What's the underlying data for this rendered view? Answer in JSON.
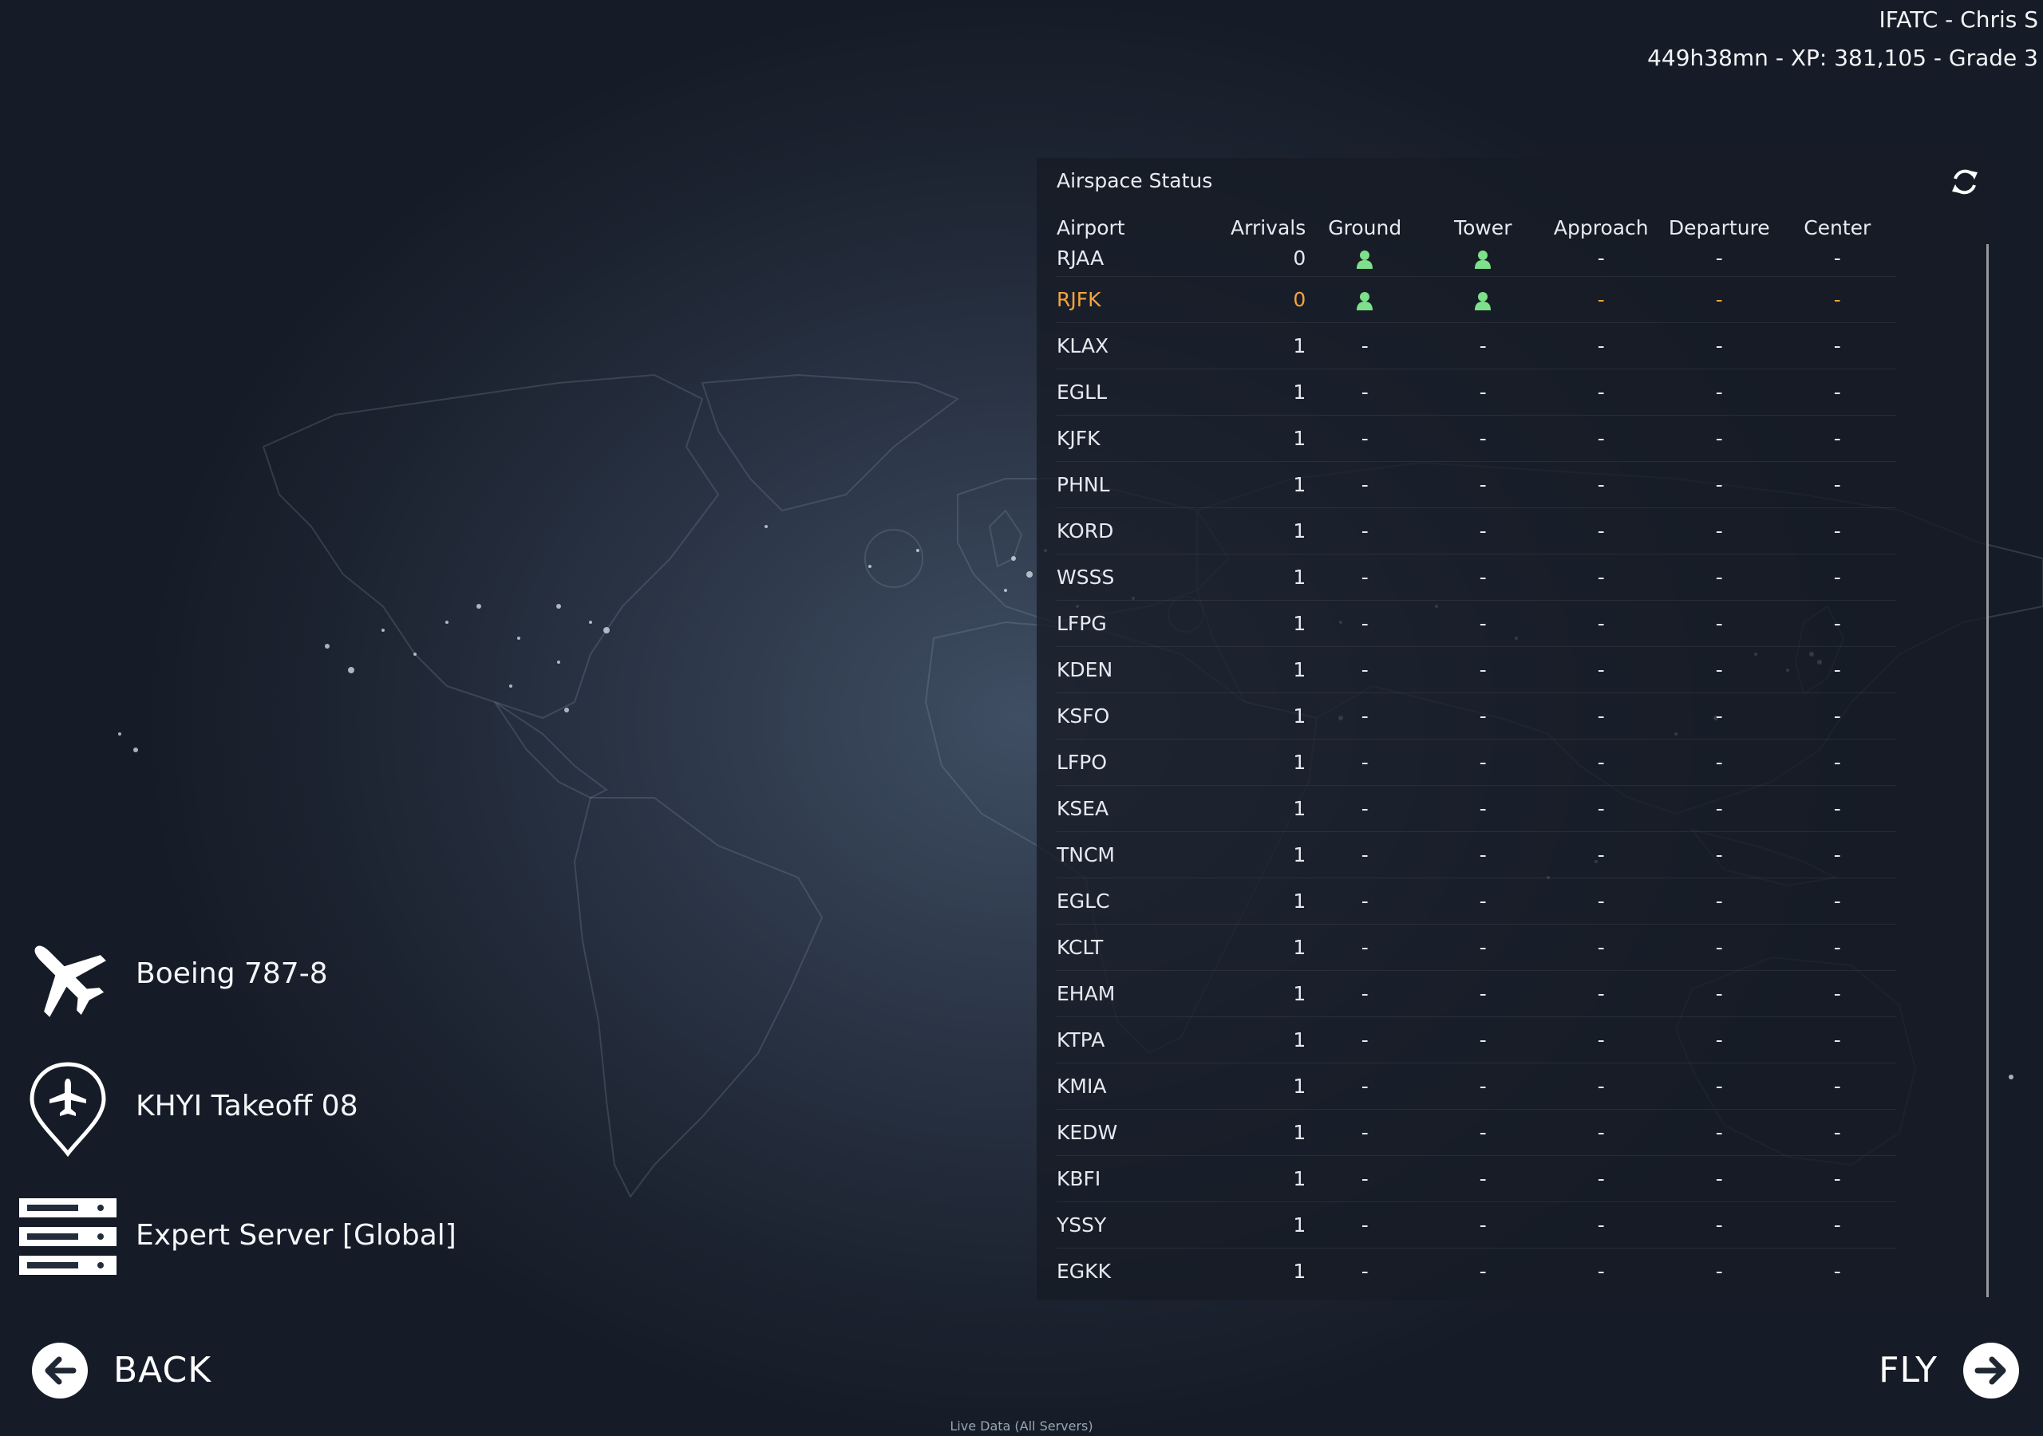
{
  "profile": {
    "name": "IFATC - Chris S",
    "stats": "449h38mn - XP: 381,105 - Grade 3"
  },
  "airspace": {
    "title": "Airspace Status",
    "refresh_icon": "refresh-icon",
    "columns": [
      "Airport",
      "Arrivals",
      "Ground",
      "Tower",
      "Approach",
      "Departure",
      "Center"
    ],
    "highlight_color": "#f5a43c",
    "controller_icon_color": "#7ee08a",
    "rows": [
      {
        "airport": "RJAA",
        "arrivals": "0",
        "ground": "controller",
        "tower": "controller",
        "approach": "-",
        "departure": "-",
        "center": "-"
      },
      {
        "airport": "RJFK",
        "arrivals": "0",
        "ground": "controller",
        "tower": "controller",
        "approach": "-",
        "departure": "-",
        "center": "-",
        "highlight": true
      },
      {
        "airport": "KLAX",
        "arrivals": "1",
        "ground": "-",
        "tower": "-",
        "approach": "-",
        "departure": "-",
        "center": "-"
      },
      {
        "airport": "EGLL",
        "arrivals": "1",
        "ground": "-",
        "tower": "-",
        "approach": "-",
        "departure": "-",
        "center": "-"
      },
      {
        "airport": "KJFK",
        "arrivals": "1",
        "ground": "-",
        "tower": "-",
        "approach": "-",
        "departure": "-",
        "center": "-"
      },
      {
        "airport": "PHNL",
        "arrivals": "1",
        "ground": "-",
        "tower": "-",
        "approach": "-",
        "departure": "-",
        "center": "-"
      },
      {
        "airport": "KORD",
        "arrivals": "1",
        "ground": "-",
        "tower": "-",
        "approach": "-",
        "departure": "-",
        "center": "-"
      },
      {
        "airport": "WSSS",
        "arrivals": "1",
        "ground": "-",
        "tower": "-",
        "approach": "-",
        "departure": "-",
        "center": "-"
      },
      {
        "airport": "LFPG",
        "arrivals": "1",
        "ground": "-",
        "tower": "-",
        "approach": "-",
        "departure": "-",
        "center": "-"
      },
      {
        "airport": "KDEN",
        "arrivals": "1",
        "ground": "-",
        "tower": "-",
        "approach": "-",
        "departure": "-",
        "center": "-"
      },
      {
        "airport": "KSFO",
        "arrivals": "1",
        "ground": "-",
        "tower": "-",
        "approach": "-",
        "departure": "-",
        "center": "-"
      },
      {
        "airport": "LFPO",
        "arrivals": "1",
        "ground": "-",
        "tower": "-",
        "approach": "-",
        "departure": "-",
        "center": "-"
      },
      {
        "airport": "KSEA",
        "arrivals": "1",
        "ground": "-",
        "tower": "-",
        "approach": "-",
        "departure": "-",
        "center": "-"
      },
      {
        "airport": "TNCM",
        "arrivals": "1",
        "ground": "-",
        "tower": "-",
        "approach": "-",
        "departure": "-",
        "center": "-"
      },
      {
        "airport": "EGLC",
        "arrivals": "1",
        "ground": "-",
        "tower": "-",
        "approach": "-",
        "departure": "-",
        "center": "-"
      },
      {
        "airport": "KCLT",
        "arrivals": "1",
        "ground": "-",
        "tower": "-",
        "approach": "-",
        "departure": "-",
        "center": "-"
      },
      {
        "airport": "EHAM",
        "arrivals": "1",
        "ground": "-",
        "tower": "-",
        "approach": "-",
        "departure": "-",
        "center": "-"
      },
      {
        "airport": "KTPA",
        "arrivals": "1",
        "ground": "-",
        "tower": "-",
        "approach": "-",
        "departure": "-",
        "center": "-"
      },
      {
        "airport": "KMIA",
        "arrivals": "1",
        "ground": "-",
        "tower": "-",
        "approach": "-",
        "departure": "-",
        "center": "-"
      },
      {
        "airport": "KEDW",
        "arrivals": "1",
        "ground": "-",
        "tower": "-",
        "approach": "-",
        "departure": "-",
        "center": "-"
      },
      {
        "airport": "KBFI",
        "arrivals": "1",
        "ground": "-",
        "tower": "-",
        "approach": "-",
        "departure": "-",
        "center": "-"
      },
      {
        "airport": "YSSY",
        "arrivals": "1",
        "ground": "-",
        "tower": "-",
        "approach": "-",
        "departure": "-",
        "center": "-"
      },
      {
        "airport": "EGKK",
        "arrivals": "1",
        "ground": "-",
        "tower": "-",
        "approach": "-",
        "departure": "-",
        "center": "-"
      }
    ]
  },
  "flight_setup": {
    "aircraft": {
      "label": "Boeing 787-8",
      "icon": "airplane-icon"
    },
    "location": {
      "label": "KHYI Takeoff 08",
      "icon": "location-pin-airplane-icon"
    },
    "server": {
      "label": "Expert Server [Global]",
      "icon": "server-icon"
    }
  },
  "nav": {
    "back_label": "BACK",
    "back_icon": "arrow-left-icon",
    "fly_label": "FLY",
    "fly_icon": "arrow-right-icon"
  },
  "footer": {
    "text": "Live Data (All Servers)"
  }
}
